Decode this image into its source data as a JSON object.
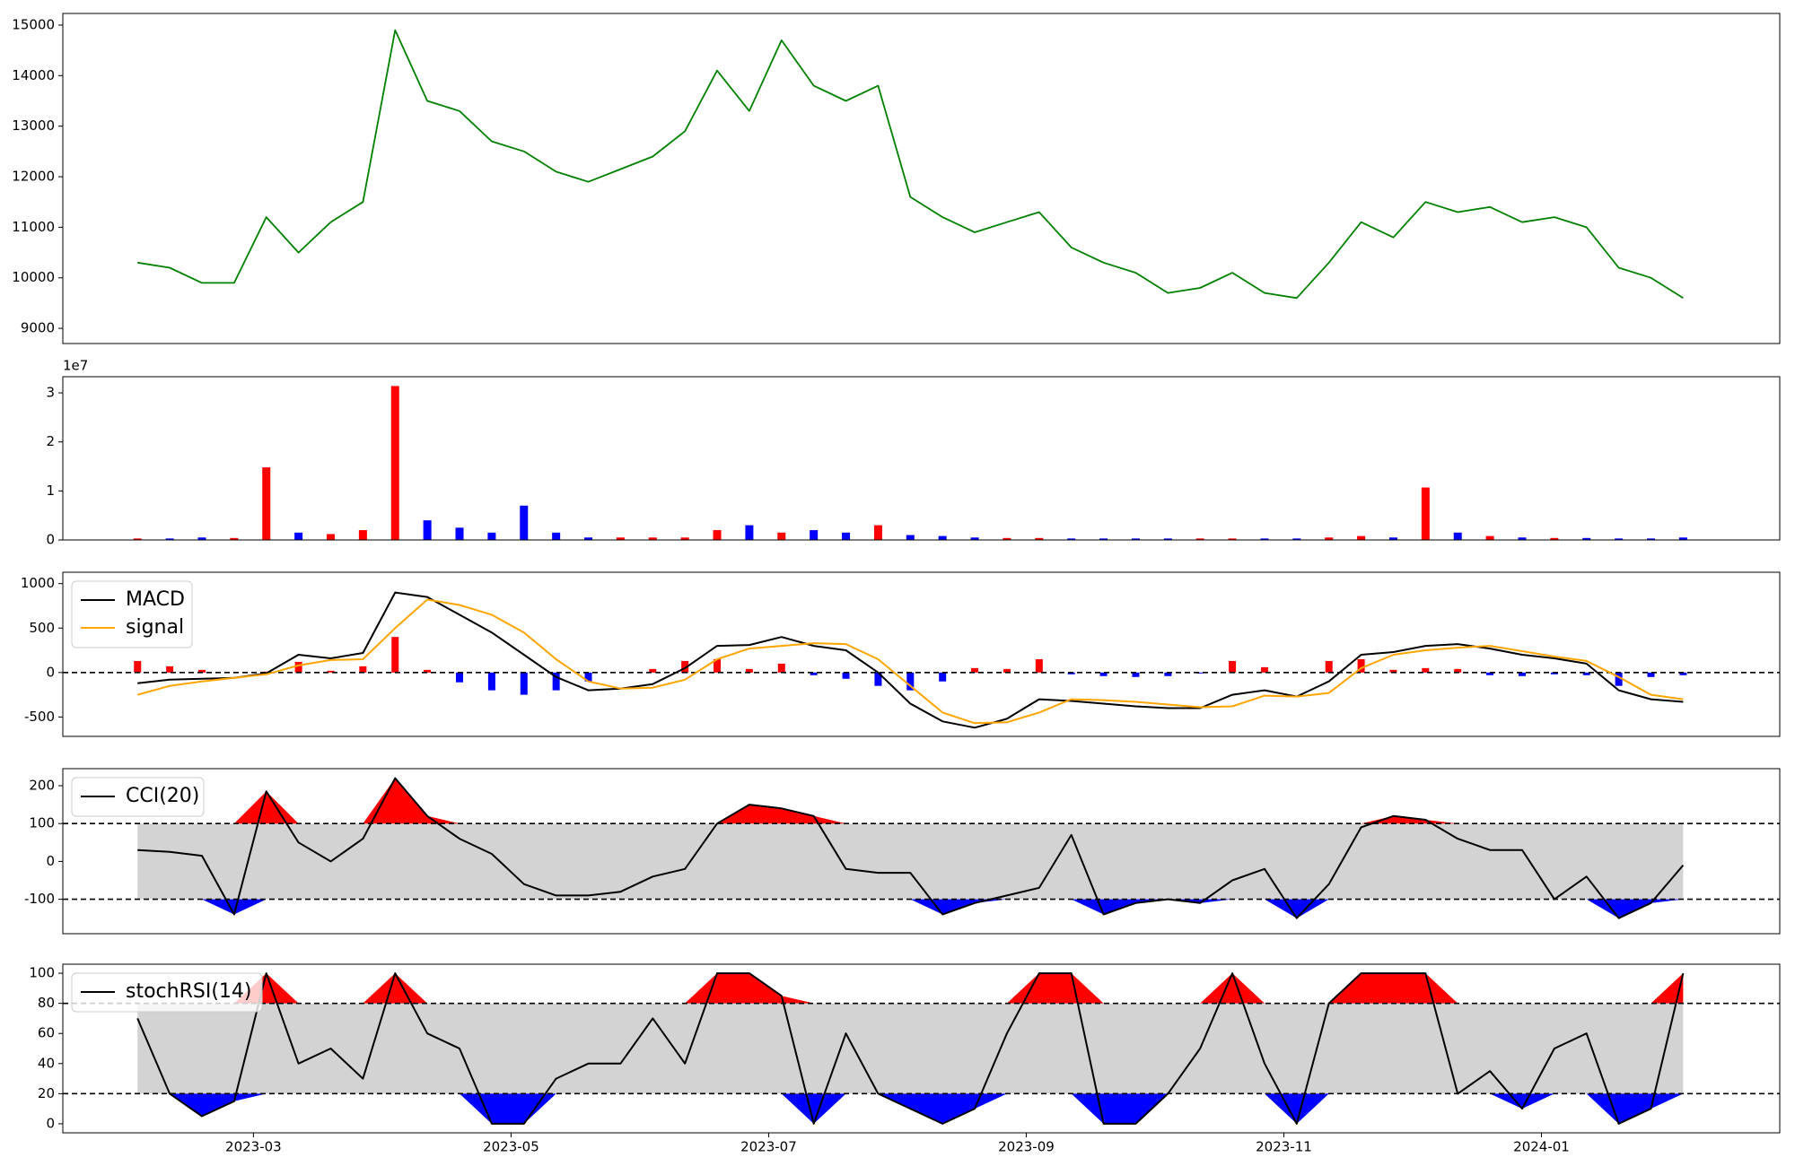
{
  "chart_data": [
    {
      "type": "line",
      "color": "green",
      "x": [
        2.1,
        2.35,
        2.6,
        2.85,
        3.1,
        3.35,
        3.6,
        3.85,
        4.1,
        4.35,
        4.6,
        4.85,
        5.1,
        5.35,
        5.6,
        5.85,
        6.1,
        6.35,
        6.6,
        6.85,
        7.1,
        7.35,
        7.6,
        7.85,
        8.1,
        8.35,
        8.6,
        8.85,
        9.1,
        9.35,
        9.6,
        9.85,
        10.1,
        10.35,
        10.6,
        10.85,
        11.1,
        11.35,
        11.6,
        11.85,
        12.1,
        12.35,
        12.6,
        12.85,
        13.1,
        13.35,
        13.6,
        13.85,
        14.1
      ],
      "values": [
        10300,
        10200,
        9900,
        9900,
        11200,
        10500,
        11100,
        11500,
        14900,
        13500,
        13300,
        12700,
        12500,
        12100,
        11900,
        12150,
        12400,
        12900,
        14100,
        13300,
        14700,
        13800,
        13500,
        13800,
        11600,
        11200,
        10900,
        11100,
        11300,
        10600,
        10300,
        10100,
        9700,
        9800,
        10100,
        9700,
        9600,
        10300,
        11100,
        10800,
        11500,
        11300,
        11400,
        11100,
        11200,
        11000,
        10200,
        10000,
        9600
      ],
      "xlim": [
        1.52,
        14.85
      ],
      "ylim": [
        8700,
        15230
      ],
      "yticks": [
        9000,
        10000,
        11000,
        12000,
        13000,
        14000,
        15000
      ]
    },
    {
      "type": "bar",
      "y_offset_label": "1e7",
      "x": [
        2.1,
        2.35,
        2.6,
        2.85,
        3.1,
        3.35,
        3.6,
        3.85,
        4.1,
        4.35,
        4.6,
        4.85,
        5.1,
        5.35,
        5.6,
        5.85,
        6.1,
        6.35,
        6.6,
        6.85,
        7.1,
        7.35,
        7.6,
        7.85,
        8.1,
        8.35,
        8.6,
        8.85,
        9.1,
        9.35,
        9.6,
        9.85,
        10.1,
        10.35,
        10.6,
        10.85,
        11.1,
        11.35,
        11.6,
        11.85,
        12.1,
        12.35,
        12.6,
        12.85,
        13.1,
        13.35,
        13.6,
        13.85,
        14.1
      ],
      "values": [
        0.03,
        0.03,
        0.05,
        0.04,
        1.48,
        0.15,
        0.12,
        0.2,
        3.14,
        0.4,
        0.25,
        0.15,
        0.7,
        0.15,
        0.05,
        0.05,
        0.05,
        0.05,
        0.2,
        0.3,
        0.15,
        0.2,
        0.15,
        0.3,
        0.1,
        0.08,
        0.05,
        0.04,
        0.04,
        0.03,
        0.03,
        0.03,
        0.03,
        0.03,
        0.03,
        0.03,
        0.03,
        0.05,
        0.08,
        0.05,
        1.07,
        0.15,
        0.08,
        0.05,
        0.04,
        0.04,
        0.03,
        0.03,
        0.05
      ],
      "colors": [
        "red",
        "blue",
        "blue",
        "red",
        "red",
        "blue",
        "red",
        "red",
        "red",
        "blue",
        "blue",
        "blue",
        "blue",
        "blue",
        "blue",
        "red",
        "red",
        "red",
        "red",
        "blue",
        "red",
        "blue",
        "blue",
        "red",
        "blue",
        "blue",
        "blue",
        "red",
        "red",
        "blue",
        "blue",
        "blue",
        "blue",
        "red",
        "red",
        "blue",
        "blue",
        "red",
        "red",
        "blue",
        "red",
        "blue",
        "red",
        "blue",
        "red",
        "blue",
        "blue",
        "blue",
        "blue"
      ],
      "xlim": [
        1.52,
        14.85
      ],
      "ylim": [
        0,
        3.33
      ],
      "yticks": [
        0,
        1,
        2,
        3
      ]
    },
    {
      "type": "macd",
      "legend": "upper left",
      "hlines": [
        0
      ],
      "x": [
        2.1,
        2.35,
        2.6,
        2.85,
        3.1,
        3.35,
        3.6,
        3.85,
        4.1,
        4.35,
        4.6,
        4.85,
        5.1,
        5.35,
        5.6,
        5.85,
        6.1,
        6.35,
        6.6,
        6.85,
        7.1,
        7.35,
        7.6,
        7.85,
        8.1,
        8.35,
        8.6,
        8.85,
        9.1,
        9.35,
        9.6,
        9.85,
        10.1,
        10.35,
        10.6,
        10.85,
        11.1,
        11.35,
        11.6,
        11.85,
        12.1,
        12.35,
        12.6,
        12.85,
        13.1,
        13.35,
        13.6,
        13.85,
        14.1
      ],
      "series": [
        {
          "name": "MACD",
          "color": "black",
          "values": [
            -120,
            -80,
            -70,
            -60,
            -10,
            200,
            160,
            220,
            900,
            850,
            650,
            450,
            200,
            -50,
            -200,
            -180,
            -130,
            50,
            300,
            310,
            400,
            300,
            250,
            0,
            -350,
            -550,
            -620,
            -520,
            -300,
            -320,
            -350,
            -380,
            -400,
            -400,
            -250,
            -200,
            -270,
            -100,
            200,
            230,
            300,
            320,
            270,
            200,
            160,
            100,
            -200,
            -300,
            -330
          ]
        },
        {
          "name": "signal",
          "color": "orange",
          "values": [
            -250,
            -150,
            -100,
            -60,
            -20,
            80,
            140,
            150,
            500,
            820,
            760,
            650,
            450,
            150,
            -100,
            -180,
            -170,
            -80,
            150,
            270,
            300,
            330,
            320,
            150,
            -150,
            -450,
            -570,
            -560,
            -450,
            -300,
            -310,
            -330,
            -360,
            -390,
            -380,
            -260,
            -270,
            -230,
            50,
            200,
            250,
            280,
            300,
            240,
            180,
            130,
            -50,
            -250,
            -300
          ]
        }
      ],
      "histogram": {
        "up_color": "red",
        "down_color": "blue",
        "values": [
          130,
          70,
          30,
          0,
          10,
          120,
          20,
          70,
          400,
          30,
          -110,
          -200,
          -250,
          -200,
          -100,
          0,
          40,
          130,
          150,
          40,
          100,
          -30,
          -70,
          -150,
          -200,
          -100,
          50,
          40,
          150,
          -20,
          -40,
          -50,
          -40,
          -10,
          130,
          60,
          0,
          130,
          150,
          30,
          50,
          40,
          -30,
          -40,
          -20,
          -30,
          -150,
          -50,
          -30
        ]
      },
      "xlim": [
        1.52,
        14.85
      ],
      "ylim": [
        -718,
        1128
      ],
      "yticks": [
        -500,
        0,
        500,
        1000
      ]
    },
    {
      "type": "oscillator",
      "legend": "upper left",
      "bands": [
        -100,
        100
      ],
      "band_color": "#d3d3d3",
      "upper_color": "red",
      "lower_color": "blue",
      "x": [
        2.1,
        2.35,
        2.6,
        2.85,
        3.1,
        3.35,
        3.6,
        3.85,
        4.1,
        4.35,
        4.6,
        4.85,
        5.1,
        5.35,
        5.6,
        5.85,
        6.1,
        6.35,
        6.6,
        6.85,
        7.1,
        7.35,
        7.6,
        7.85,
        8.1,
        8.35,
        8.6,
        8.85,
        9.1,
        9.35,
        9.6,
        9.85,
        10.1,
        10.35,
        10.6,
        10.85,
        11.1,
        11.35,
        11.6,
        11.85,
        12.1,
        12.35,
        12.6,
        12.85,
        13.1,
        13.35,
        13.6,
        13.85,
        14.1
      ],
      "series": [
        {
          "name": "CCI(20)",
          "color": "black",
          "values": [
            30,
            25,
            15,
            -140,
            185,
            50,
            0,
            60,
            220,
            120,
            60,
            20,
            -60,
            -90,
            -90,
            -80,
            -40,
            -20,
            100,
            150,
            140,
            120,
            -20,
            -30,
            -30,
            -140,
            -110,
            -90,
            -70,
            70,
            -140,
            -110,
            -100,
            -110,
            -50,
            -20,
            -150,
            -60,
            90,
            120,
            110,
            60,
            30,
            30,
            -100,
            -40,
            -150,
            -110,
            -10
          ]
        }
      ],
      "xlim": [
        1.52,
        14.85
      ],
      "ylim": [
        -191,
        245
      ],
      "yticks": [
        -100,
        0,
        100,
        200
      ]
    },
    {
      "type": "oscillator",
      "legend": "upper left",
      "bands": [
        20,
        80
      ],
      "band_color": "#d3d3d3",
      "upper_color": "red",
      "lower_color": "blue",
      "x": [
        2.1,
        2.35,
        2.6,
        2.85,
        3.1,
        3.35,
        3.6,
        3.85,
        4.1,
        4.35,
        4.6,
        4.85,
        5.1,
        5.35,
        5.6,
        5.85,
        6.1,
        6.35,
        6.6,
        6.85,
        7.1,
        7.35,
        7.6,
        7.85,
        8.1,
        8.35,
        8.6,
        8.85,
        9.1,
        9.35,
        9.6,
        9.85,
        10.1,
        10.35,
        10.6,
        10.85,
        11.1,
        11.35,
        11.6,
        11.85,
        12.1,
        12.35,
        12.6,
        12.85,
        13.1,
        13.35,
        13.6,
        13.85,
        14.1
      ],
      "series": [
        {
          "name": "stochRSI(14)",
          "color": "black",
          "values": [
            70,
            20,
            5,
            15,
            100,
            40,
            50,
            30,
            100,
            60,
            50,
            0,
            0,
            30,
            40,
            40,
            70,
            40,
            100,
            100,
            85,
            0,
            60,
            20,
            10,
            0,
            10,
            60,
            100,
            100,
            0,
            0,
            20,
            50,
            100,
            40,
            0,
            80,
            100,
            100,
            100,
            20,
            35,
            10,
            50,
            60,
            0,
            10,
            100
          ]
        }
      ],
      "xlim": [
        1.52,
        14.85
      ],
      "ylim": [
        -6,
        106
      ],
      "yticks": [
        0,
        20,
        40,
        60,
        80,
        100
      ],
      "xticks": [
        {
          "value": 3,
          "label": "2023-03"
        },
        {
          "value": 5,
          "label": "2023-05"
        },
        {
          "value": 7,
          "label": "2023-07"
        },
        {
          "value": 9,
          "label": "2023-09"
        },
        {
          "value": 11,
          "label": "2023-11"
        },
        {
          "value": 13,
          "label": "2024-01"
        }
      ]
    }
  ]
}
